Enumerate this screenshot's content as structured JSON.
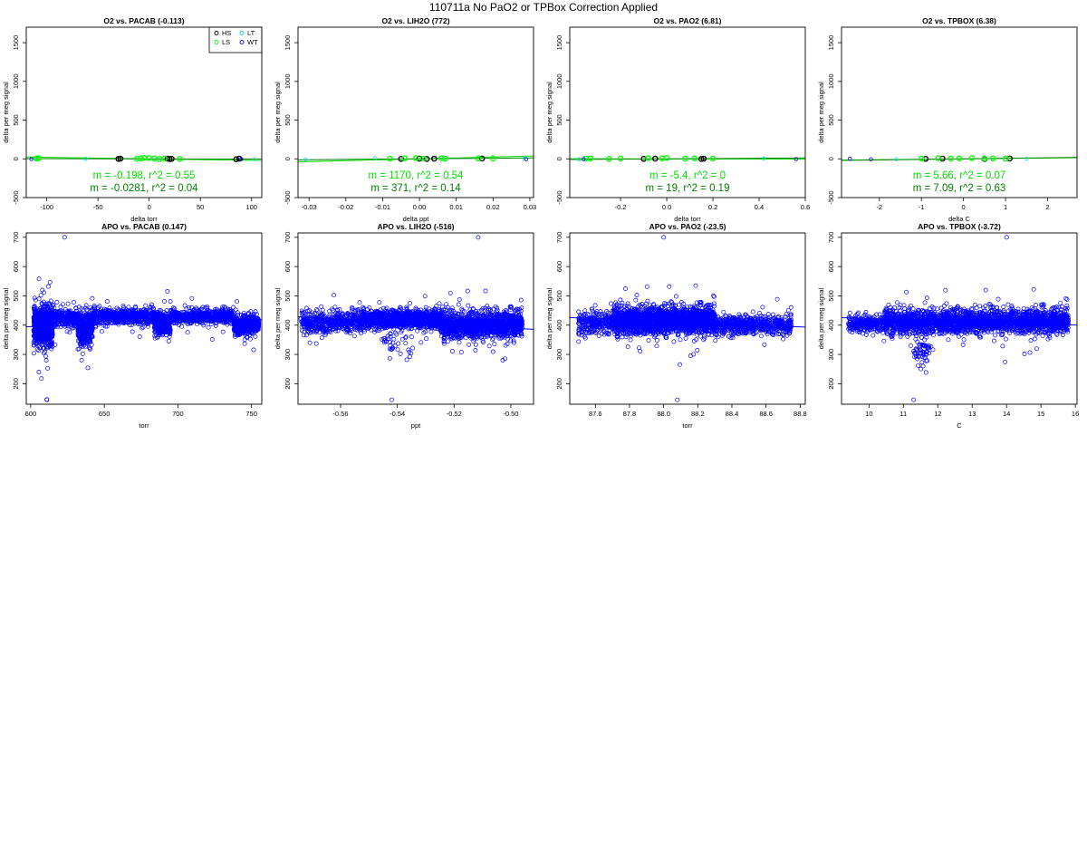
{
  "page_title": "110711a   No PaO2 or TPBox Correction Applied",
  "ylabel_common": "delta per meg signal",
  "colors": {
    "HS": "#000000",
    "LS": "#00ff00",
    "LT": "#00e5e5",
    "WT": "#0000ff",
    "fit_light": "#00dd00",
    "fit_dark": "#008000",
    "apo": "#0000ff"
  },
  "legend": {
    "entries": [
      {
        "label": "HS",
        "color": "#000000"
      },
      {
        "label": "LT",
        "color": "#00e5e5"
      },
      {
        "label": "LS",
        "color": "#00ff00"
      },
      {
        "label": "WT",
        "color": "#0000ff"
      }
    ]
  },
  "chart_data": [
    {
      "type": "scatter",
      "title": "O2 vs. PACAB (-0.113)",
      "xlabel": "delta torr",
      "ylabel": "delta per meg signal",
      "xlim": [
        -120,
        110
      ],
      "ylim": [
        -500,
        1700
      ],
      "xticks": [
        -100,
        -50,
        0,
        50,
        100
      ],
      "yticks": [
        -500,
        0,
        500,
        1000,
        1500
      ],
      "grid": false,
      "legend": "top-right",
      "annotations": [
        {
          "text": "m = -0.198, r^2 = 0.55",
          "color": "#00dd00"
        },
        {
          "text": "m = -0.0281, r^2 = 0.04",
          "color": "#008000"
        }
      ],
      "fit_lines": [
        {
          "color": "#00dd00",
          "slope": -0.198,
          "intercept": 0
        },
        {
          "color": "#008000",
          "slope": -0.0281,
          "intercept": 0
        }
      ],
      "series": [
        {
          "name": "HS",
          "x": [
            -30,
            -28,
            18,
            20,
            22,
            85,
            88
          ],
          "y": [
            0,
            2,
            3,
            -2,
            1,
            -5,
            2
          ]
        },
        {
          "name": "LS",
          "x": [
            -110,
            -108,
            -12,
            -8,
            -5,
            0,
            5,
            10,
            15,
            30
          ],
          "y": [
            5,
            8,
            0,
            5,
            12,
            10,
            6,
            -3,
            4,
            -2
          ]
        },
        {
          "name": "LT",
          "x": [
            -62,
            103
          ],
          "y": [
            0,
            -5
          ]
        },
        {
          "name": "WT",
          "x": [
            -115,
            90
          ],
          "y": [
            -3,
            -4
          ]
        }
      ]
    },
    {
      "type": "scatter",
      "title": "O2 vs. LIH2O (772)",
      "xlabel": "delta ppt",
      "ylabel": "delta per meg signal",
      "xlim": [
        -0.033,
        0.031
      ],
      "ylim": [
        -500,
        1700
      ],
      "xticks": [
        -0.03,
        -0.02,
        -0.01,
        0.0,
        0.01,
        0.02,
        0.03
      ],
      "xtick_labels": [
        "-0.03",
        "-0.02",
        "-0.01",
        "0.00",
        "0.01",
        "0.02",
        "0.03"
      ],
      "yticks": [
        -500,
        0,
        500,
        1000,
        1500
      ],
      "grid": false,
      "annotations": [
        {
          "text": "m = 1170, r^2 = 0.54",
          "color": "#00dd00"
        },
        {
          "text": "m = 371, r^2 = 0.14",
          "color": "#008000"
        }
      ],
      "fit_lines": [
        {
          "color": "#00dd00",
          "slope": 1170,
          "intercept": 0
        },
        {
          "color": "#008000",
          "slope": 371,
          "intercept": 0
        }
      ],
      "series": [
        {
          "name": "HS",
          "x": [
            -0.005,
            0.0,
            0.002,
            0.004,
            0.017
          ],
          "y": [
            0,
            3,
            -2,
            2,
            4
          ]
        },
        {
          "name": "LS",
          "x": [
            -0.008,
            -0.004,
            -0.001,
            0.001,
            0.006,
            0.007,
            0.016,
            0.02
          ],
          "y": [
            2,
            6,
            10,
            4,
            8,
            3,
            6,
            5
          ]
        },
        {
          "name": "LT",
          "x": [
            -0.031,
            -0.012,
            0.0285
          ],
          "y": [
            -8,
            8,
            5
          ]
        },
        {
          "name": "WT",
          "x": [
            0.029
          ],
          "y": [
            -5
          ]
        }
      ]
    },
    {
      "type": "scatter",
      "title": "O2 vs. PAO2 (6.81)",
      "xlabel": "delta torr",
      "ylabel": "delta per meg signal",
      "xlim": [
        -0.42,
        0.6
      ],
      "ylim": [
        -500,
        1700
      ],
      "xticks": [
        -0.2,
        0.0,
        0.2,
        0.4,
        0.6
      ],
      "xtick_labels": [
        "-0.2",
        "0.0",
        "0.2",
        "0.4",
        "0.6"
      ],
      "yticks": [
        -500,
        0,
        500,
        1000,
        1500
      ],
      "grid": false,
      "annotations": [
        {
          "text": "m = -5.4, r^2 = 0",
          "color": "#00dd00"
        },
        {
          "text": "m = 19, r^2 = 0.19",
          "color": "#008000"
        }
      ],
      "fit_lines": [
        {
          "color": "#00dd00",
          "slope": -5.4,
          "intercept": 0
        },
        {
          "color": "#008000",
          "slope": 19,
          "intercept": 0
        }
      ],
      "series": [
        {
          "name": "HS",
          "x": [
            -0.1,
            -0.05,
            0.15,
            0.16
          ],
          "y": [
            0,
            2,
            -2,
            3
          ]
        },
        {
          "name": "LS",
          "x": [
            -0.35,
            -0.33,
            -0.25,
            -0.2,
            -0.08,
            -0.02,
            0.0,
            0.08,
            0.12,
            0.2
          ],
          "y": [
            3,
            5,
            0,
            4,
            8,
            6,
            12,
            2,
            5,
            4
          ]
        },
        {
          "name": "LT",
          "x": [
            -0.38,
            0.42
          ],
          "y": [
            -5,
            5
          ]
        },
        {
          "name": "WT",
          "x": [
            -0.36,
            0.56
          ],
          "y": [
            -4,
            -3
          ]
        }
      ]
    },
    {
      "type": "scatter",
      "title": "O2 vs. TPBOX (6.38)",
      "xlabel": "delta C",
      "ylabel": "delta per meg signal",
      "xlim": [
        -2.9,
        2.7
      ],
      "ylim": [
        -500,
        1700
      ],
      "xticks": [
        -2,
        -1,
        0,
        1,
        2
      ],
      "yticks": [
        -500,
        0,
        500,
        1000,
        1500
      ],
      "grid": false,
      "annotations": [
        {
          "text": "m = 5.66, r^2 = 0.07",
          "color": "#00dd00"
        },
        {
          "text": "m = 7.09, r^2 = 0.63",
          "color": "#008000"
        }
      ],
      "fit_lines": [
        {
          "color": "#00dd00",
          "slope": 5.66,
          "intercept": 0
        },
        {
          "color": "#008000",
          "slope": 7.09,
          "intercept": 0
        }
      ],
      "series": [
        {
          "name": "HS",
          "x": [
            -0.9,
            -0.5,
            0.5,
            1.1
          ],
          "y": [
            0,
            3,
            -2,
            4
          ]
        },
        {
          "name": "LS",
          "x": [
            -1.0,
            -0.6,
            -0.3,
            -0.1,
            0.2,
            0.5,
            0.7,
            1.0
          ],
          "y": [
            3,
            8,
            2,
            5,
            10,
            4,
            6,
            2
          ]
        },
        {
          "name": "LT",
          "x": [
            -1.6,
            1.5
          ],
          "y": [
            -5,
            3
          ]
        },
        {
          "name": "WT",
          "x": [
            -2.7,
            -2.2
          ],
          "y": [
            2,
            -5
          ]
        }
      ]
    },
    {
      "type": "scatter",
      "title": "APO vs. PACAB (0.147)",
      "xlabel": "torr",
      "ylabel": "delta per meg signal",
      "xlim": [
        597,
        757
      ],
      "ylim": [
        130,
        715
      ],
      "xticks": [
        600,
        650,
        700,
        750
      ],
      "yticks": [
        200,
        300,
        400,
        500,
        600,
        700
      ],
      "grid": false,
      "fit_lines": [
        {
          "color": "#0000ff",
          "slope": 0.147,
          "intercept": 307
        }
      ],
      "clusters": [
        {
          "x": [
            602,
            615
          ],
          "center": 395,
          "spread": 55,
          "n": 900
        },
        {
          "x": [
            615,
            632
          ],
          "center": 425,
          "spread": 25,
          "n": 280
        },
        {
          "x": [
            632,
            642
          ],
          "center": 390,
          "spread": 45,
          "n": 500
        },
        {
          "x": [
            642,
            684
          ],
          "center": 430,
          "spread": 22,
          "n": 600
        },
        {
          "x": [
            684,
            695
          ],
          "center": 405,
          "spread": 35,
          "n": 350
        },
        {
          "x": [
            695,
            738
          ],
          "center": 430,
          "spread": 20,
          "n": 600
        },
        {
          "x": [
            738,
            755
          ],
          "center": 400,
          "spread": 28,
          "n": 500
        }
      ],
      "outliers": [
        {
          "x": 623,
          "y": 700
        },
        {
          "x": 611,
          "y": 145
        }
      ]
    },
    {
      "type": "scatter",
      "title": "APO vs. LIH2O (-516)",
      "xlabel": "ppt",
      "ylabel": "delta per meg signal",
      "xlim": [
        -0.575,
        -0.492
      ],
      "ylim": [
        130,
        715
      ],
      "xticks": [
        -0.56,
        -0.54,
        -0.52,
        -0.5
      ],
      "xtick_labels": [
        "-0.56",
        "-0.54",
        "-0.52",
        "-0.50"
      ],
      "yticks": [
        200,
        300,
        400,
        500,
        600,
        700
      ],
      "grid": false,
      "fit_lines": [
        {
          "color": "#0000ff",
          "slope": -516,
          "intercept": 132
        }
      ],
      "clusters": [
        {
          "x": [
            -0.574,
            -0.553
          ],
          "center": 410,
          "spread": 30,
          "n": 500
        },
        {
          "x": [
            -0.553,
            -0.525
          ],
          "center": 420,
          "spread": 25,
          "n": 1400
        },
        {
          "x": [
            -0.525,
            -0.496
          ],
          "center": 400,
          "spread": 38,
          "n": 1400
        },
        {
          "x": [
            -0.545,
            -0.535
          ],
          "center": 330,
          "spread": 45,
          "n": 40
        }
      ],
      "outliers": [
        {
          "x": -0.5115,
          "y": 700
        },
        {
          "x": -0.542,
          "y": 145
        }
      ]
    },
    {
      "type": "scatter",
      "title": "APO vs. PAO2 (-23.5)",
      "xlabel": "torr",
      "ylabel": "delta per meg signal",
      "xlim": [
        87.45,
        88.83
      ],
      "ylim": [
        130,
        715
      ],
      "xticks": [
        87.6,
        87.8,
        88.0,
        88.2,
        88.4,
        88.6,
        88.8
      ],
      "xtick_labels": [
        "87.6",
        "87.8",
        "88.0",
        "88.2",
        "88.4",
        "88.6",
        "88.8"
      ],
      "yticks": [
        200,
        300,
        400,
        500,
        600,
        700
      ],
      "grid": false,
      "fit_lines": [
        {
          "color": "#0000ff",
          "slope": -23.5,
          "intercept": 2481
        }
      ],
      "clusters": [
        {
          "x": [
            87.5,
            87.7
          ],
          "center": 410,
          "spread": 35,
          "n": 250
        },
        {
          "x": [
            87.7,
            88.3
          ],
          "center": 415,
          "spread": 38,
          "n": 2200
        },
        {
          "x": [
            88.3,
            88.75
          ],
          "center": 400,
          "spread": 28,
          "n": 600
        }
      ],
      "outliers": [
        {
          "x": 88.0,
          "y": 700
        },
        {
          "x": 88.08,
          "y": 145
        }
      ]
    },
    {
      "type": "scatter",
      "title": "APO vs. TPBOX (-3.72)",
      "xlabel": "C",
      "ylabel": "delta per meg signal",
      "xlim": [
        9.2,
        16.05
      ],
      "ylim": [
        130,
        715
      ],
      "xticks": [
        10,
        11,
        12,
        13,
        14,
        15,
        16
      ],
      "yticks": [
        200,
        300,
        400,
        500,
        600,
        700
      ],
      "grid": false,
      "fit_lines": [
        {
          "color": "#0000ff",
          "slope": -3.72,
          "intercept": 460
        }
      ],
      "clusters": [
        {
          "x": [
            9.4,
            10.4
          ],
          "center": 405,
          "spread": 25,
          "n": 250
        },
        {
          "x": [
            10.4,
            15.8
          ],
          "center": 412,
          "spread": 35,
          "n": 2400
        },
        {
          "x": [
            11.3,
            11.8
          ],
          "center": 310,
          "spread": 45,
          "n": 60
        }
      ],
      "outliers": [
        {
          "x": 14.0,
          "y": 700
        },
        {
          "x": 11.3,
          "y": 145
        }
      ]
    }
  ]
}
